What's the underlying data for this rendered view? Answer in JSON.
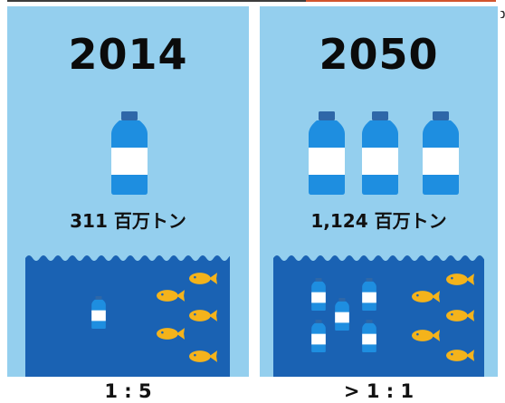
{
  "colors": {
    "panel_bg": "#94cfee",
    "ocean": "#1a62b3",
    "bottle_body": "#1e8ee0",
    "bottle_cap": "#2e67a8",
    "bottle_label": "#ffffff",
    "fish": "#f4b31b",
    "top_line_left": "#3d3d3d",
    "top_line_right": "#d2552e"
  },
  "left": {
    "year": "2014",
    "amount": "311 百万トン",
    "ratio": "1 : 5",
    "large_bottles": 1,
    "ocean_bottles": 1,
    "fish": 5
  },
  "right": {
    "year": "2050",
    "amount": "1,124 百万トン",
    "ratio": "> 1 : 1",
    "large_bottles": 3,
    "ocean_bottles": 5,
    "fish": 5
  }
}
